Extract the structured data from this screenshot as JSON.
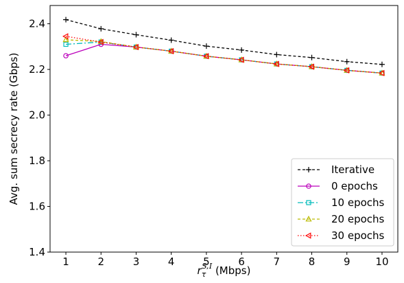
{
  "chart_data": {
    "type": "line",
    "xlabel_main": "r",
    "xlabel_sup": "S,",
    "xlabel_sup_script": "I",
    "xlabel_sub": "τ",
    "xlabel_unit": " (Mbps)",
    "ylabel": "Avg. sum secrecy rate (Gbps)",
    "x": [
      1,
      2,
      3,
      4,
      5,
      6,
      7,
      8,
      9,
      10
    ],
    "xticks": [
      "1",
      "2",
      "3",
      "4",
      "5",
      "6",
      "7",
      "8",
      "9",
      "10"
    ],
    "yticks": [
      "1.4",
      "1.6",
      "1.8",
      "2.0",
      "2.2",
      "2.4"
    ],
    "ytick_values": [
      1.4,
      1.6,
      1.8,
      2.0,
      2.2,
      2.4
    ],
    "xlim": [
      0.55,
      10.45
    ],
    "ylim": [
      1.4,
      2.48
    ],
    "grid": false,
    "legend_placement": "lower-right",
    "series": [
      {
        "name": "Iterative",
        "color": "#000000",
        "dash": "4,3",
        "marker": "plus",
        "values": [
          2.418,
          2.378,
          2.352,
          2.328,
          2.302,
          2.285,
          2.265,
          2.252,
          2.234,
          2.222
        ]
      },
      {
        "name": "0 epochs",
        "color": "#bb00bb",
        "dash": "",
        "marker": "circle",
        "values": [
          2.26,
          2.31,
          2.298,
          2.28,
          2.258,
          2.242,
          2.224,
          2.212,
          2.196,
          2.184
        ]
      },
      {
        "name": "10 epochs",
        "color": "#00bbbb",
        "dash": "8,3,2,3",
        "marker": "square",
        "values": [
          2.31,
          2.32,
          2.298,
          2.28,
          2.258,
          2.242,
          2.224,
          2.212,
          2.196,
          2.184
        ]
      },
      {
        "name": "20 epochs",
        "color": "#bbbb00",
        "dash": "4,3",
        "marker": "triangle-up",
        "values": [
          2.33,
          2.322,
          2.298,
          2.28,
          2.258,
          2.242,
          2.224,
          2.212,
          2.196,
          2.184
        ]
      },
      {
        "name": "30 epochs",
        "color": "#ff0000",
        "dash": "1.5,2.5",
        "marker": "triangle-left",
        "values": [
          2.345,
          2.32,
          2.298,
          2.28,
          2.258,
          2.242,
          2.224,
          2.212,
          2.196,
          2.184
        ]
      }
    ]
  }
}
